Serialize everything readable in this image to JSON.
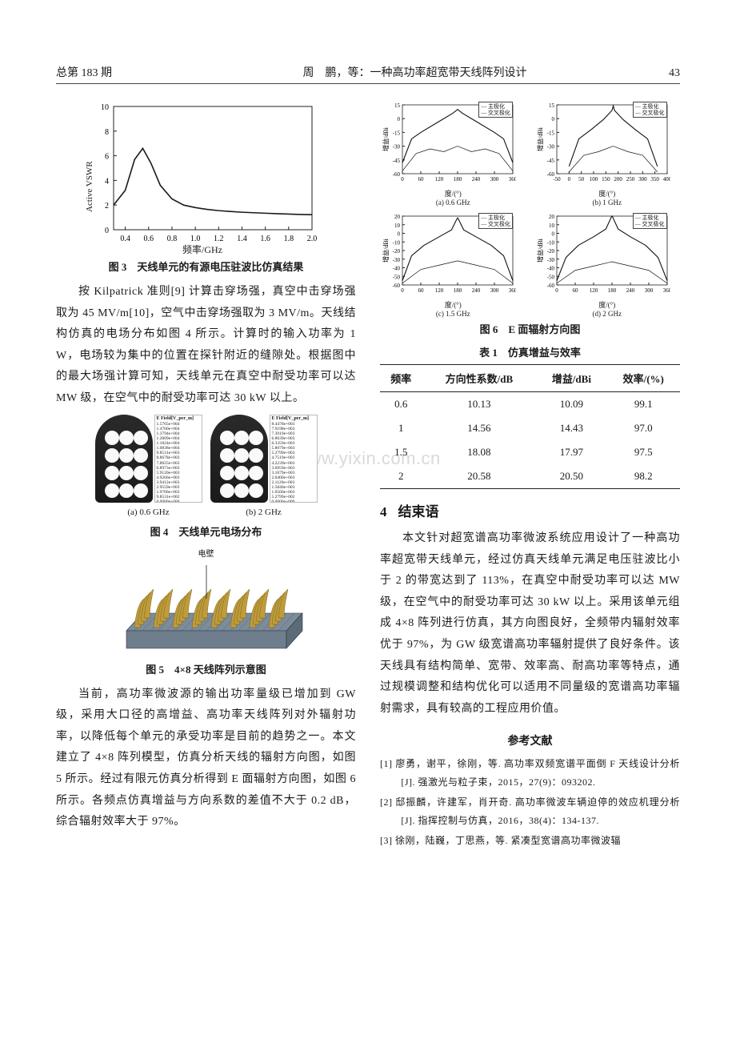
{
  "header": {
    "issue": "总第 183 期",
    "title": "周　鹏，等：一种高功率超宽带天线阵列设计",
    "page": "43"
  },
  "fig3": {
    "caption": "图 3　天线单元的有源电压驻波比仿真结果",
    "xlabel": "频率/GHz",
    "ylabel": "Active VSWR",
    "xticks": [
      0.4,
      0.6,
      0.8,
      1.0,
      1.2,
      1.4,
      1.6,
      1.8,
      2.0
    ],
    "yticks": [
      0,
      2,
      4,
      6,
      8,
      10
    ],
    "xlim": [
      0.3,
      2.0
    ],
    "ylim": [
      0,
      10
    ],
    "line_color": "#1a1a1a",
    "grid_color": "#cccccc",
    "points": [
      [
        0.3,
        2.0
      ],
      [
        0.4,
        3.2
      ],
      [
        0.48,
        5.7
      ],
      [
        0.55,
        6.6
      ],
      [
        0.62,
        5.4
      ],
      [
        0.7,
        3.6
      ],
      [
        0.8,
        2.5
      ],
      [
        0.9,
        2.0
      ],
      [
        1.0,
        1.8
      ],
      [
        1.1,
        1.65
      ],
      [
        1.2,
        1.55
      ],
      [
        1.3,
        1.48
      ],
      [
        1.4,
        1.42
      ],
      [
        1.5,
        1.38
      ],
      [
        1.6,
        1.34
      ],
      [
        1.7,
        1.3
      ],
      [
        1.8,
        1.27
      ],
      [
        1.9,
        1.24
      ],
      [
        2.0,
        1.22
      ]
    ]
  },
  "paragraphs_left1": "按 Kilpatrick 准则[9] 计算击穿场强，真空中击穿场强取为 45 MV/m[10]，空气中击穿场强取为 3 MV/m。天线结构仿真的电场分布如图 4 所示。计算时的输入功率为 1 W，电场较为集中的位置在探针附近的缝隙处。根据图中的最大场强计算可知，天线单元在真空中耐受功率可以达 MW 级，在空气中的耐受功率可达 30 kW 以上。",
  "fig4": {
    "caption": "图 4　天线单元电场分布",
    "sub_a": "(a) 0.6 GHz",
    "sub_b": "(b) 2 GHz",
    "colorbar_title": "E Field[V_per_m]",
    "colorbar_values_a": [
      "1.5765e+004",
      "1.4760e+004",
      "1.3794e+004",
      "1.2809e+004",
      "1.1824e+004",
      "1.0838e+004",
      "9.8531e+003",
      "8.8678e+003",
      "7.8825e+003",
      "6.8973e+003",
      "5.9120e+003",
      "4.9266e+003",
      "3.9412e+003",
      "2.9559e+003",
      "1.9706e+003",
      "9.8531e+002",
      "0.0000e+000"
    ],
    "colorbar_values_b": [
      "8.4478e+003",
      "7.9198e+003",
      "7.3919e+003",
      "6.8639e+003",
      "6.3359e+003",
      "5.8079e+003",
      "5.2799e+003",
      "4.7519e+003",
      "4.2239e+003",
      "3.6959e+003",
      "3.1679e+003",
      "2.6400e+003",
      "2.1120e+003",
      "1.5840e+003",
      "1.0560e+003",
      "5.2799e+002",
      "0.0000e+000"
    ]
  },
  "fig5": {
    "caption": "图 5　4×8 天线阵列示意图",
    "label_on_figure": "电壁",
    "accent_color": "#bf9c3a",
    "base_color": "#7b8c9a"
  },
  "paragraphs_left2": "当前，高功率微波源的输出功率量级已增加到 GW 级，采用大口径的高增益、高功率天线阵列对外辐射功率，以降低每个单元的承受功率是目前的趋势之一。本文建立了 4×8 阵列模型，仿真分析天线的辐射方向图，如图 5 所示。经过有限元仿真分析得到 E 面辐射方向图，如图 6 所示。各频点仿真增益与方向系数的差值不大于 0.2 dB，综合辐射效率大于 97%。",
  "fig6": {
    "caption": "图 6　E 面辐射方向图",
    "legend": [
      "主极化",
      "交叉极化"
    ],
    "marker_colors": [
      "#000000",
      "#000000"
    ],
    "xlabel": "度/(°)",
    "ylabel": "增益/dBi",
    "subplots": [
      {
        "sub": "(a) 0.6 GHz",
        "xticks": [
          0,
          60,
          120,
          180,
          240,
          300,
          360
        ],
        "yticks": [
          -60,
          -45,
          -30,
          -15,
          0,
          15
        ]
      },
      {
        "sub": "(b) 1 GHz",
        "xticks": [
          -50,
          0,
          50,
          100,
          150,
          200,
          250,
          300,
          350,
          400
        ],
        "yticks": [
          -60,
          -45,
          -30,
          -15,
          0,
          15
        ]
      },
      {
        "sub": "(c) 1.5 GHz",
        "xticks": [
          0,
          60,
          120,
          180,
          240,
          300,
          360
        ],
        "yticks": [
          -60,
          -50,
          -40,
          -30,
          -20,
          -10,
          0,
          10,
          20
        ]
      },
      {
        "sub": "(d) 2 GHz",
        "xticks": [
          0,
          60,
          120,
          180,
          240,
          300,
          360
        ],
        "yticks": [
          -60,
          -50,
          -40,
          -30,
          -20,
          -10,
          0,
          10,
          20
        ]
      }
    ],
    "curves": {
      "a_main": [
        [
          0,
          -48
        ],
        [
          30,
          -22
        ],
        [
          60,
          -15
        ],
        [
          120,
          -3
        ],
        [
          165,
          6
        ],
        [
          180,
          10
        ],
        [
          195,
          6
        ],
        [
          240,
          -3
        ],
        [
          300,
          -15
        ],
        [
          330,
          -22
        ],
        [
          360,
          -48
        ]
      ],
      "a_cross": [
        [
          0,
          -57
        ],
        [
          45,
          -38
        ],
        [
          90,
          -33
        ],
        [
          135,
          -36
        ],
        [
          180,
          -30
        ],
        [
          225,
          -36
        ],
        [
          270,
          -33
        ],
        [
          315,
          -38
        ],
        [
          360,
          -57
        ]
      ],
      "b_main": [
        [
          0,
          -52
        ],
        [
          40,
          -22
        ],
        [
          90,
          -12
        ],
        [
          140,
          -1
        ],
        [
          175,
          9
        ],
        [
          180,
          14
        ],
        [
          185,
          9
        ],
        [
          220,
          -1
        ],
        [
          270,
          -12
        ],
        [
          320,
          -22
        ],
        [
          360,
          -52
        ]
      ],
      "b_cross": [
        [
          0,
          -58
        ],
        [
          60,
          -40
        ],
        [
          120,
          -36
        ],
        [
          180,
          -30
        ],
        [
          240,
          -36
        ],
        [
          300,
          -40
        ],
        [
          360,
          -58
        ]
      ],
      "c_main": [
        [
          0,
          -55
        ],
        [
          30,
          -26
        ],
        [
          70,
          -14
        ],
        [
          120,
          -4
        ],
        [
          160,
          4
        ],
        [
          178,
          17
        ],
        [
          180,
          18
        ],
        [
          182,
          17
        ],
        [
          200,
          4
        ],
        [
          240,
          -4
        ],
        [
          290,
          -14
        ],
        [
          330,
          -26
        ],
        [
          360,
          -55
        ]
      ],
      "c_cross": [
        [
          0,
          -58
        ],
        [
          60,
          -42
        ],
        [
          120,
          -37
        ],
        [
          180,
          -32
        ],
        [
          240,
          -37
        ],
        [
          300,
          -42
        ],
        [
          360,
          -58
        ]
      ],
      "d_main": [
        [
          0,
          -55
        ],
        [
          30,
          -28
        ],
        [
          70,
          -14
        ],
        [
          120,
          -4
        ],
        [
          160,
          5
        ],
        [
          178,
          19
        ],
        [
          180,
          20
        ],
        [
          182,
          19
        ],
        [
          200,
          5
        ],
        [
          240,
          -4
        ],
        [
          290,
          -14
        ],
        [
          330,
          -28
        ],
        [
          360,
          -55
        ]
      ],
      "d_cross": [
        [
          0,
          -58
        ],
        [
          60,
          -43
        ],
        [
          120,
          -38
        ],
        [
          180,
          -33
        ],
        [
          240,
          -38
        ],
        [
          300,
          -43
        ],
        [
          360,
          -58
        ]
      ]
    }
  },
  "table1": {
    "caption": "表 1　仿真增益与效率",
    "columns": [
      "频率",
      "方向性系数/dB",
      "增益/dBi",
      "效率/(%)"
    ],
    "rows": [
      [
        "0.6",
        "10.13",
        "10.09",
        "99.1"
      ],
      [
        "1",
        "14.56",
        "14.43",
        "97.0"
      ],
      [
        "1.5",
        "18.08",
        "17.97",
        "97.5"
      ],
      [
        "2",
        "20.58",
        "20.50",
        "98.2"
      ]
    ]
  },
  "section4_heading_num": "4",
  "section4_heading_text": "结束语",
  "section4_body": "本文针对超宽谱高功率微波系统应用设计了一种高功率超宽带天线单元，经过仿真天线单元满足电压驻波比小于 2 的带宽达到了 113%，在真空中耐受功率可以达 MW 级，在空气中的耐受功率可达 30 kW 以上。采用该单元组成 4×8 阵列进行仿真，其方向图良好，全频带内辐射效率优于 97%，为 GW 级宽谱高功率辐射提供了良好条件。该天线具有结构简单、宽带、效率高、耐高功率等特点，通过规模调整和结构优化可以适用不同量级的宽谱高功率辐射需求，具有较高的工程应用价值。",
  "references_heading": "参考文献",
  "references": [
    "[1] 廖勇，谢平，徐刚，等. 高功率双频宽谱平面倒 F 天线设计分析 [J]. 强激光与粒子束，2015，27(9)：093202.",
    "[2] 邸振麟，许建军，肖开奇. 高功率微波车辆迫停的效应机理分析 [J]. 指挥控制与仿真，2016，38(4)：134-137.",
    "[3] 徐刚，陆巍，丁思燕，等. 紧凑型宽谱高功率微波辐"
  ],
  "watermark": "www.yixin.com.cn",
  "colors": {
    "text": "#1a1a1a",
    "rule": "#222222",
    "bg": "#ffffff"
  }
}
